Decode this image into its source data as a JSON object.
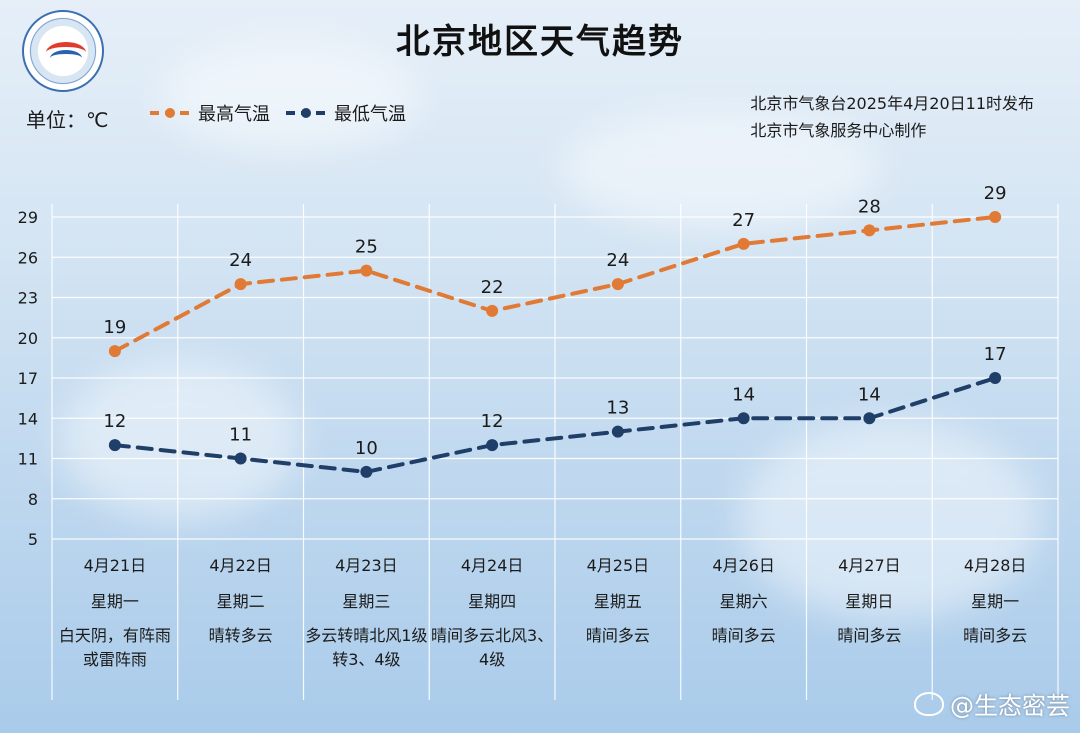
{
  "header": {
    "title": "北京地区天气趋势",
    "unit": "单位：℃",
    "legend_high": "最高气温",
    "legend_low": "最低气温",
    "publisher_line1": "北京市气象台2025年4月20日11时发布",
    "publisher_line2": "北京市气象服务中心制作"
  },
  "watermark": "@生态密芸",
  "colors": {
    "high": "#e07a34",
    "low": "#1f3f68",
    "grid": "#ffffff"
  },
  "days": [
    {
      "date": "4月21日",
      "week": "星期一",
      "weather": "白天阴，有阵雨或雷阵雨"
    },
    {
      "date": "4月22日",
      "week": "星期二",
      "weather": "晴转多云"
    },
    {
      "date": "4月23日",
      "week": "星期三",
      "weather": "多云转晴北风1级转3、4级"
    },
    {
      "date": "4月24日",
      "week": "星期四",
      "weather": "晴间多云北风3、4级"
    },
    {
      "date": "4月25日",
      "week": "星期五",
      "weather": "晴间多云"
    },
    {
      "date": "4月26日",
      "week": "星期六",
      "weather": "晴间多云"
    },
    {
      "date": "4月27日",
      "week": "星期日",
      "weather": "晴间多云"
    },
    {
      "date": "4月28日",
      "week": "星期一",
      "weather": "晴间多云"
    }
  ],
  "chart_data": {
    "type": "line",
    "title": "北京地区天气趋势",
    "ylabel": "单位：℃",
    "ylim": [
      5,
      29
    ],
    "yticks": [
      29,
      26,
      23,
      20,
      17,
      14,
      11,
      8,
      5
    ],
    "categories": [
      "4月21日",
      "4月22日",
      "4月23日",
      "4月24日",
      "4月25日",
      "4月26日",
      "4月27日",
      "4月28日"
    ],
    "series": [
      {
        "name": "最高气温",
        "values": [
          19,
          24,
          25,
          22,
          24,
          27,
          28,
          29
        ],
        "color": "#e07a34"
      },
      {
        "name": "最低气温",
        "values": [
          12,
          11,
          10,
          12,
          13,
          14,
          14,
          17
        ],
        "color": "#1f3f68"
      }
    ],
    "grid": true,
    "legend": "top-left"
  }
}
